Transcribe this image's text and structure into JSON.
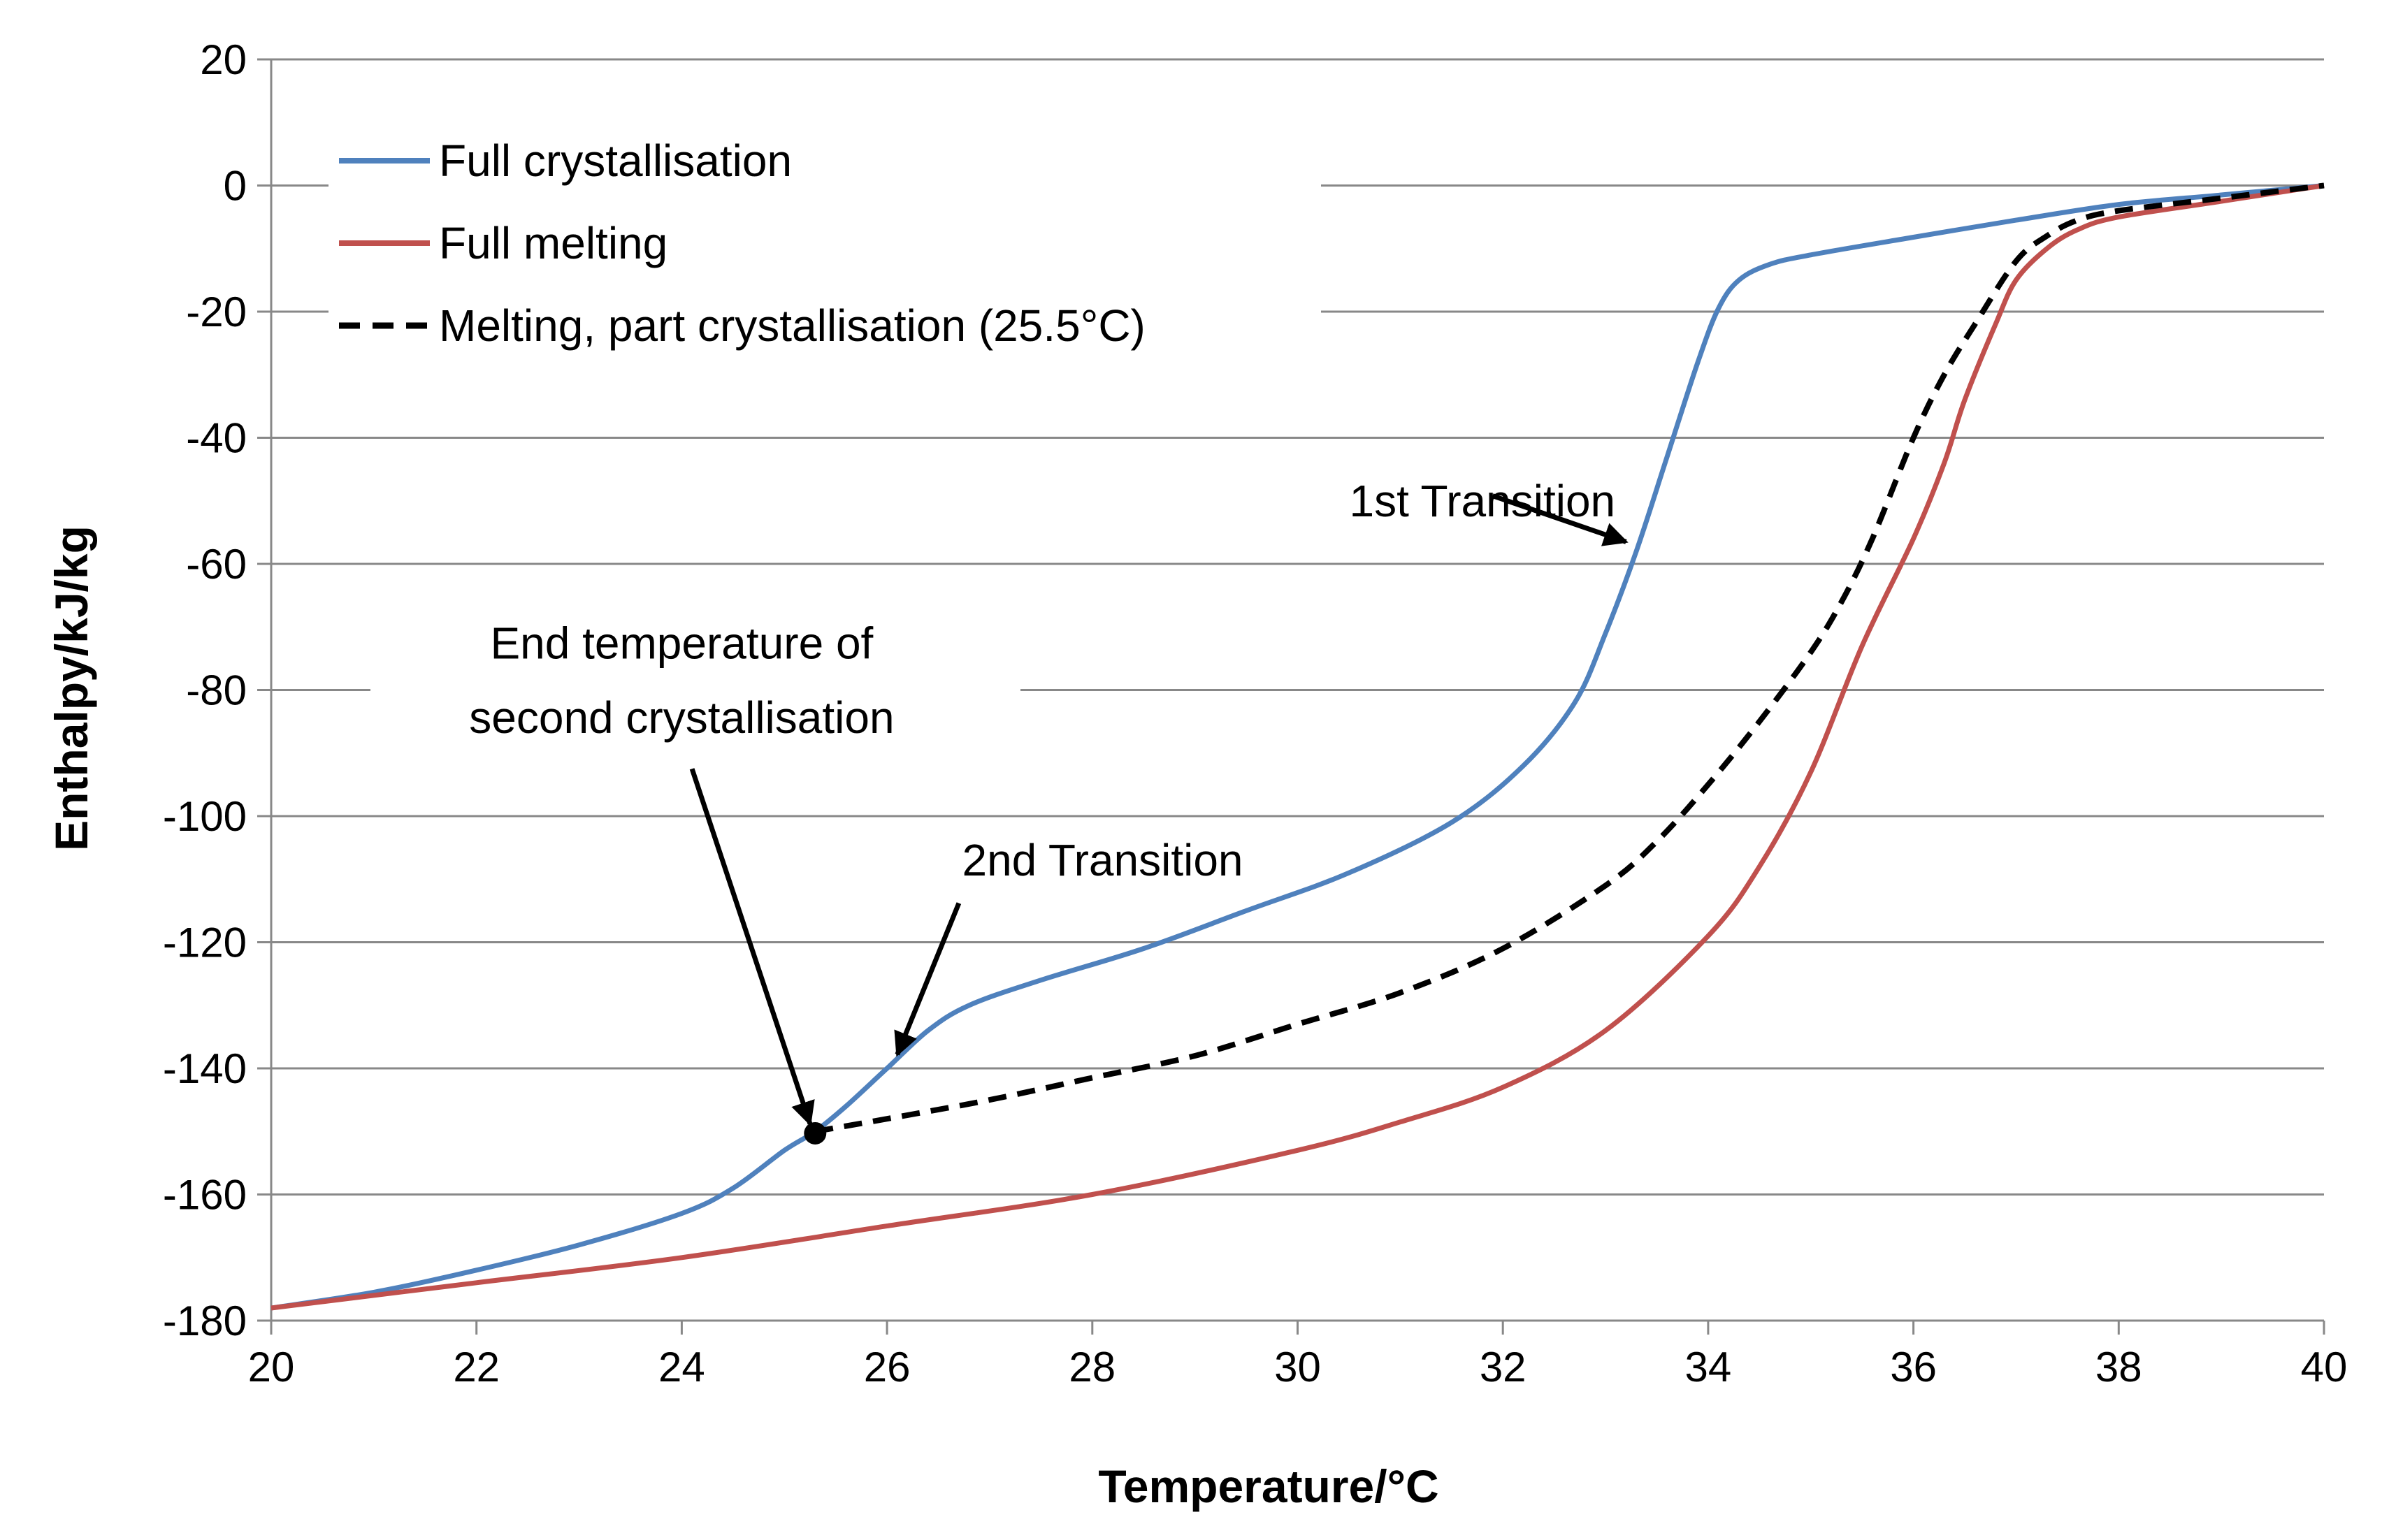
{
  "chart_data": {
    "type": "line",
    "title": "",
    "xlabel": "Temperature/°C",
    "ylabel": "Enthalpy/kJ/kg",
    "xlim": [
      20,
      40
    ],
    "ylim": [
      -180,
      20
    ],
    "xticks": [
      20,
      22,
      24,
      26,
      28,
      30,
      32,
      34,
      36,
      38,
      40
    ],
    "yticks": [
      -180,
      -160,
      -140,
      -120,
      -100,
      -80,
      -60,
      -40,
      -20,
      0,
      20
    ],
    "grid": "horizontal",
    "legend_position": "top-left",
    "series": [
      {
        "name": "Full crystallisation",
        "color": "#4f81bd",
        "style": "solid",
        "x": [
          20,
          21,
          22,
          23,
          24,
          24.5,
          25,
          25.3,
          25.6,
          26,
          26.4,
          26.8,
          27.5,
          28.5,
          29.5,
          30.5,
          31.5,
          32.2,
          32.7,
          33,
          33.3,
          33.6,
          33.9,
          34.1,
          34.3,
          34.6,
          35,
          36,
          37,
          38,
          39,
          40
        ],
        "y": [
          -178,
          -175.5,
          -172,
          -168,
          -163,
          -159,
          -153,
          -150,
          -146,
          -140,
          -134,
          -130,
          -126,
          -121,
          -115,
          -109,
          -101,
          -92,
          -82,
          -71,
          -58,
          -43,
          -28,
          -19.5,
          -15,
          -12.5,
          -11,
          -8.2,
          -5.5,
          -3,
          -1.5,
          0
        ]
      },
      {
        "name": "Full melting",
        "color": "#c0504d",
        "style": "solid",
        "x": [
          20,
          22,
          24,
          26,
          28,
          30,
          31,
          32,
          33,
          34,
          34.5,
          35,
          35.5,
          36,
          36.3,
          36.5,
          36.8,
          37,
          37.3,
          37.6,
          38,
          39,
          40
        ],
        "y": [
          -178,
          -174,
          -170,
          -165,
          -160,
          -153,
          -148.5,
          -143,
          -134,
          -119,
          -108,
          -93,
          -73,
          -56,
          -44,
          -34,
          -22,
          -15,
          -10,
          -7,
          -5,
          -2.5,
          0
        ]
      },
      {
        "name": "Melting, part crystallisation (25.5°C)",
        "color": "#000000",
        "style": "dashed",
        "x": [
          25.3,
          26,
          27,
          28,
          29,
          30,
          31,
          32,
          33,
          33.5,
          34,
          34.5,
          35,
          35.3,
          35.6,
          36,
          36.3,
          36.6,
          37,
          37.3,
          37.6,
          38,
          39,
          40
        ],
        "y": [
          -150,
          -148,
          -145,
          -141.5,
          -138,
          -133,
          -128,
          -121,
          -111,
          -104,
          -95,
          -85,
          -74,
          -66,
          -56,
          -40,
          -30,
          -22,
          -12,
          -8,
          -5.5,
          -4,
          -2,
          0
        ]
      }
    ],
    "marker": {
      "x": 25.3,
      "y": -150.3
    },
    "annotations": [
      {
        "lines": [
          "1st Transition"
        ],
        "text_x": 31.8,
        "text_y": -50,
        "arrow_from": [
          31.9,
          -49.2
        ],
        "arrow_to": [
          33.2,
          -56.5
        ]
      },
      {
        "lines": [
          "2nd Transition"
        ],
        "text_x": 28.1,
        "text_y": -107,
        "arrow_from": [
          26.7,
          -113.8
        ],
        "arrow_to": [
          26.1,
          -137.8
        ]
      },
      {
        "lines": [
          "End temperature of",
          "second crystallisation"
        ],
        "text_x": 24,
        "text_y": -72.6,
        "line_gap": -11.8,
        "arrow_from": [
          24.1,
          -92.5
        ],
        "arrow_to": [
          25.25,
          -148.8
        ]
      }
    ]
  }
}
